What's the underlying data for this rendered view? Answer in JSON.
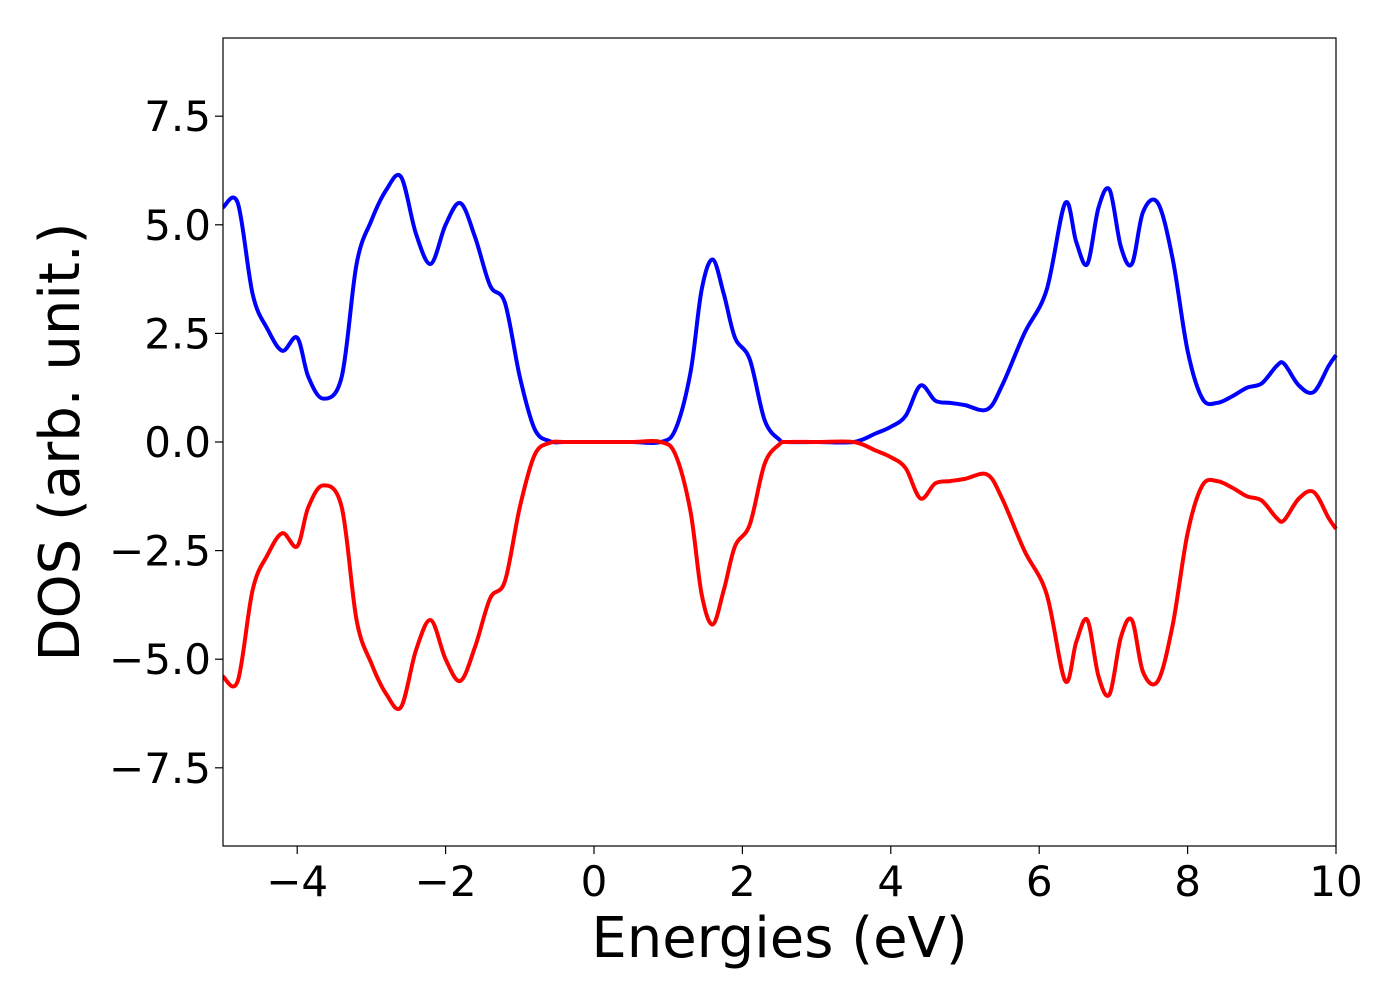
{
  "chart_data": {
    "type": "line",
    "title": "",
    "xlabel": "Energies (eV)",
    "ylabel": "DOS (arb. unit.)",
    "xlim": [
      -5,
      10
    ],
    "ylim": [
      -9.3,
      9.3
    ],
    "x_ticks": [
      -4,
      -2,
      0,
      2,
      4,
      6,
      8,
      10
    ],
    "x_tick_labels": [
      "−4",
      "−2",
      "0",
      "2",
      "4",
      "6",
      "8",
      "10"
    ],
    "y_ticks": [
      -7.5,
      -5.0,
      -2.5,
      0.0,
      2.5,
      5.0,
      7.5
    ],
    "y_tick_labels": [
      "−7.5",
      "−5.0",
      "−2.5",
      "0.0",
      "2.5",
      "5.0",
      "7.5"
    ],
    "grid": false,
    "legend": "none",
    "series": [
      {
        "color": "#0000ff",
        "x": [
          -5.0,
          -4.8,
          -4.6,
          -4.4,
          -4.2,
          -4.0,
          -3.85,
          -3.65,
          -3.4,
          -3.2,
          -3.0,
          -2.8,
          -2.6,
          -2.4,
          -2.2,
          -2.0,
          -1.8,
          -1.6,
          -1.4,
          -1.2,
          -1.0,
          -0.8,
          -0.6,
          -0.4,
          0.0,
          0.5,
          0.9,
          1.1,
          1.3,
          1.45,
          1.6,
          1.75,
          1.9,
          2.1,
          2.3,
          2.5,
          2.6,
          3.0,
          3.5,
          3.8,
          4.0,
          4.2,
          4.4,
          4.6,
          4.8,
          5.0,
          5.3,
          5.5,
          5.8,
          6.1,
          6.35,
          6.5,
          6.65,
          6.8,
          6.95,
          7.1,
          7.25,
          7.4,
          7.6,
          7.8,
          8.0,
          8.2,
          8.4,
          8.6,
          8.8,
          9.0,
          9.2,
          9.3,
          9.5,
          9.7,
          9.9,
          10.0
        ],
        "values": [
          5.4,
          5.5,
          3.4,
          2.6,
          2.1,
          2.4,
          1.5,
          1.0,
          1.5,
          4.1,
          5.1,
          5.8,
          6.1,
          4.8,
          4.1,
          5.0,
          5.5,
          4.7,
          3.6,
          3.2,
          1.5,
          0.3,
          0.02,
          0.0,
          0.0,
          0.0,
          0.0,
          0.3,
          1.6,
          3.5,
          4.2,
          3.4,
          2.4,
          1.9,
          0.5,
          0.05,
          0.0,
          0.0,
          0.0,
          0.2,
          0.35,
          0.6,
          1.3,
          0.95,
          0.9,
          0.85,
          0.75,
          1.3,
          2.5,
          3.5,
          5.5,
          4.6,
          4.1,
          5.4,
          5.8,
          4.5,
          4.1,
          5.3,
          5.5,
          4.2,
          2.1,
          1.0,
          0.9,
          1.05,
          1.25,
          1.35,
          1.75,
          1.8,
          1.3,
          1.15,
          1.75,
          2.0
        ]
      },
      {
        "color": "#ff0000",
        "x": [
          -5.0,
          -4.8,
          -4.6,
          -4.4,
          -4.2,
          -4.0,
          -3.85,
          -3.65,
          -3.4,
          -3.2,
          -3.0,
          -2.8,
          -2.6,
          -2.4,
          -2.2,
          -2.0,
          -1.8,
          -1.6,
          -1.4,
          -1.2,
          -1.0,
          -0.8,
          -0.6,
          -0.4,
          0.0,
          0.5,
          0.9,
          1.1,
          1.3,
          1.45,
          1.6,
          1.75,
          1.9,
          2.1,
          2.3,
          2.5,
          2.6,
          3.0,
          3.5,
          3.8,
          4.0,
          4.2,
          4.4,
          4.6,
          4.8,
          5.0,
          5.3,
          5.5,
          5.8,
          6.1,
          6.35,
          6.5,
          6.65,
          6.8,
          6.95,
          7.1,
          7.25,
          7.4,
          7.6,
          7.8,
          8.0,
          8.2,
          8.4,
          8.6,
          8.8,
          9.0,
          9.2,
          9.3,
          9.5,
          9.7,
          9.9,
          10.0
        ],
        "values": [
          -5.4,
          -5.5,
          -3.4,
          -2.6,
          -2.1,
          -2.4,
          -1.5,
          -1.0,
          -1.5,
          -4.1,
          -5.1,
          -5.8,
          -6.1,
          -4.8,
          -4.1,
          -5.0,
          -5.5,
          -4.7,
          -3.6,
          -3.2,
          -1.5,
          -0.3,
          -0.02,
          0.0,
          0.0,
          0.0,
          0.0,
          -0.3,
          -1.6,
          -3.5,
          -4.2,
          -3.4,
          -2.4,
          -1.9,
          -0.5,
          -0.05,
          0.0,
          0.0,
          0.0,
          -0.2,
          -0.35,
          -0.6,
          -1.3,
          -0.95,
          -0.9,
          -0.85,
          -0.75,
          -1.3,
          -2.5,
          -3.5,
          -5.5,
          -4.6,
          -4.1,
          -5.4,
          -5.8,
          -4.5,
          -4.1,
          -5.3,
          -5.5,
          -4.2,
          -2.1,
          -1.0,
          -0.9,
          -1.05,
          -1.25,
          -1.35,
          -1.75,
          -1.8,
          -1.3,
          -1.15,
          -1.75,
          -2.0
        ]
      }
    ]
  }
}
